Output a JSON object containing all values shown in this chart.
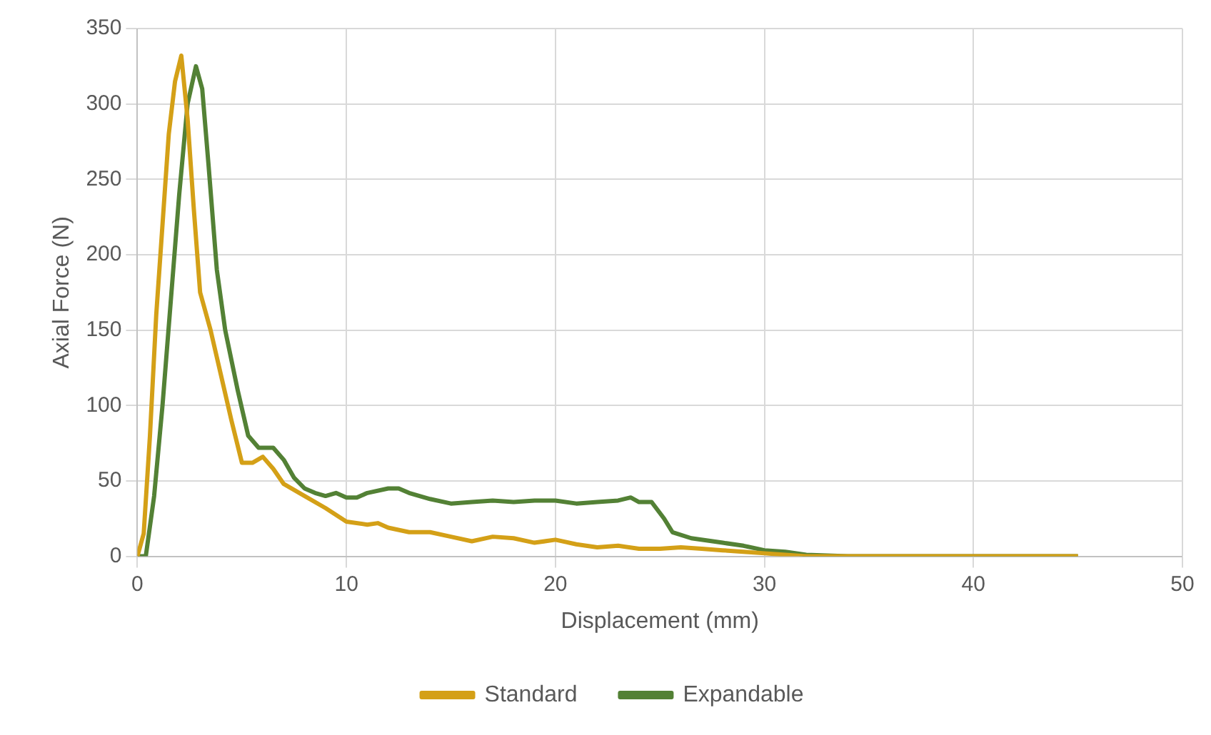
{
  "chart_data": {
    "type": "line",
    "xlabel": "Displacement (mm)",
    "ylabel": "Axial Force (N)",
    "xlim": [
      0,
      50
    ],
    "xticks": [
      0,
      10,
      20,
      30,
      40,
      50
    ],
    "ylim": [
      0,
      350
    ],
    "yticks": [
      0,
      50,
      100,
      150,
      200,
      250,
      300,
      350
    ],
    "grid": true,
    "legend": "bottom",
    "marker": "none",
    "line_style": "solid",
    "series": [
      {
        "name": "Standard",
        "color": "#d4a017",
        "x": [
          0,
          0.3,
          0.6,
          0.9,
          1.2,
          1.5,
          1.8,
          2.1,
          2.4,
          2.7,
          3,
          3.5,
          4,
          4.5,
          5,
          5.5,
          6,
          6.5,
          7,
          8,
          9,
          10,
          11,
          11.5,
          12,
          13,
          14,
          15,
          16,
          17,
          18,
          19,
          20,
          21,
          22,
          23,
          24,
          25,
          26,
          27,
          28,
          29,
          30,
          31,
          32,
          45
        ],
        "values": [
          0,
          15,
          80,
          160,
          220,
          280,
          315,
          332,
          290,
          230,
          175,
          150,
          120,
          90,
          62,
          62,
          66,
          58,
          48,
          40,
          32,
          23,
          21,
          22,
          19,
          16,
          16,
          13,
          10,
          13,
          12,
          9,
          11,
          8,
          6,
          7,
          5,
          5,
          6,
          5,
          4,
          3,
          2,
          1,
          0,
          0
        ]
      },
      {
        "name": "Expandable",
        "color": "#538135",
        "x": [
          0,
          0.4,
          0.8,
          1.2,
          1.6,
          2,
          2.4,
          2.8,
          3.1,
          3.4,
          3.8,
          4.2,
          4.8,
          5.3,
          5.8,
          6.5,
          7,
          7.5,
          8,
          8.5,
          9,
          9.5,
          10,
          10.5,
          11,
          12,
          12.5,
          13,
          14,
          15,
          16,
          17,
          18,
          19,
          20,
          21,
          22,
          23,
          23.6,
          24,
          24.6,
          25.2,
          25.6,
          26.5,
          28,
          29,
          30,
          31,
          32,
          34,
          45
        ],
        "values": [
          0,
          0,
          40,
          100,
          170,
          240,
          300,
          325,
          310,
          260,
          190,
          150,
          110,
          80,
          72,
          72,
          64,
          52,
          45,
          42,
          40,
          42,
          39,
          39,
          42,
          45,
          45,
          42,
          38,
          35,
          36,
          37,
          36,
          37,
          37,
          35,
          36,
          37,
          39,
          36,
          36,
          25,
          16,
          12,
          9,
          7,
          4,
          3,
          1,
          0,
          0
        ]
      }
    ]
  }
}
